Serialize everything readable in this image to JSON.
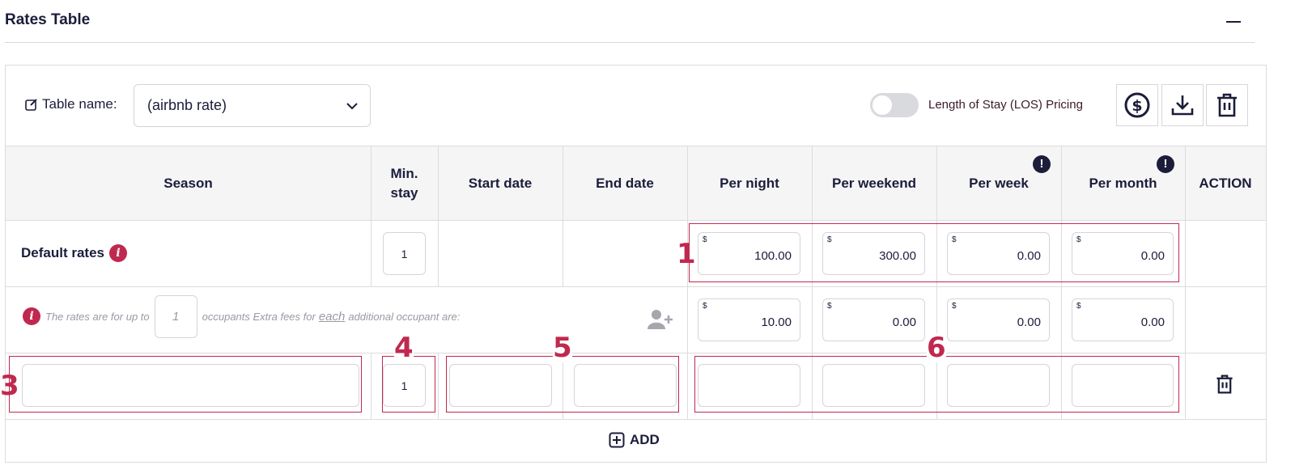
{
  "section": {
    "title": "Rates Table"
  },
  "toolbar": {
    "table_name_label": "Table name:",
    "table_name_value": "(airbnb rate)",
    "los_label": "Length of Stay (LOS) Pricing",
    "los_enabled": false,
    "icons": [
      "dollar-circle-icon",
      "download-icon",
      "trash-icon"
    ]
  },
  "columns": [
    "Season",
    "Min. stay",
    "Start date",
    "End date",
    "Per night",
    "Per weekend",
    "Per week",
    "Per month",
    "ACTION"
  ],
  "default_row": {
    "label": "Default rates",
    "min_stay": "1",
    "currency": "$",
    "per_night": "100.00",
    "per_weekend": "300.00",
    "per_week": "0.00",
    "per_month": "0.00"
  },
  "occupant_row": {
    "text_before": "The rates are for up to",
    "occupants": "1",
    "text_mid": "occupants Extra fees for",
    "text_each": "each",
    "text_after": "additional occupant are:",
    "currency": "$",
    "per_night": "10.00",
    "per_weekend": "0.00",
    "per_week": "0.00",
    "per_month": "0.00"
  },
  "new_row": {
    "season": "",
    "min_stay": "1",
    "start_date": "",
    "end_date": "",
    "per_night": "",
    "per_weekend": "",
    "per_week": "",
    "per_month": ""
  },
  "add_label": "ADD",
  "annotations": [
    "1",
    "3",
    "4",
    "5",
    "6"
  ],
  "colors": {
    "accent": "#c0294f",
    "text": "#1b1d3a"
  }
}
